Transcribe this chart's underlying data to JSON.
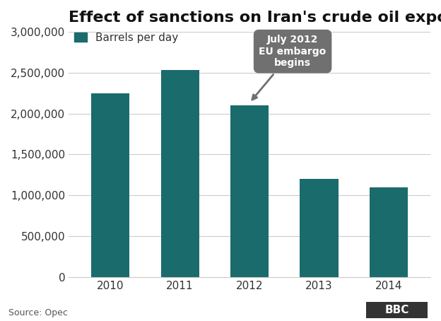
{
  "title": "Effect of sanctions on Iran's crude oil exports",
  "legend_label": "Barrels per day",
  "categories": [
    "2010",
    "2011",
    "2012",
    "2013",
    "2014"
  ],
  "values": [
    2250000,
    2530000,
    2100000,
    1200000,
    1100000
  ],
  "bar_color": "#1a6b6b",
  "background_color": "#ffffff",
  "ylim": [
    0,
    3000000
  ],
  "yticks": [
    0,
    500000,
    1000000,
    1500000,
    2000000,
    2500000,
    3000000
  ],
  "ytick_labels": [
    "0",
    "500,000",
    "1,000,000",
    "1,500,000",
    "2,000,000",
    "2,500,000",
    "3,000,000"
  ],
  "annotation_text": "July 2012\nEU embargo\nbegins",
  "annotation_bar_index": 2,
  "annotation_box_color": "#707070",
  "annotation_text_color": "#ffffff",
  "source_text": "Source: Opec",
  "bbc_text": "BBC",
  "grid_color": "#cccccc",
  "title_fontsize": 16,
  "axis_fontsize": 11,
  "legend_fontsize": 11,
  "bar_width": 0.55
}
